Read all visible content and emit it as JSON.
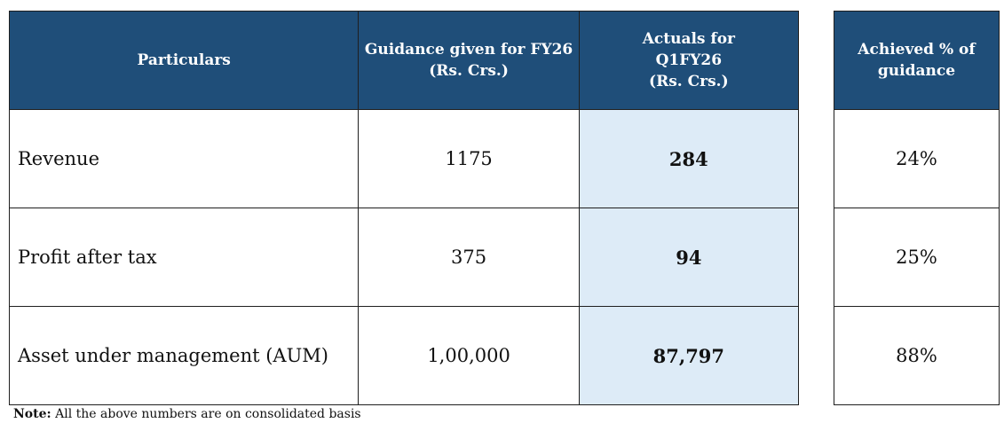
{
  "table": {
    "headers": {
      "particulars": "Particulars",
      "guidance_line1": "Guidance given for FY26",
      "guidance_line2": "(Rs. Crs.)",
      "actuals_line1": "Actuals for",
      "actuals_line2": "Q1FY26",
      "actuals_line3": "(Rs. Crs.)"
    },
    "rows": [
      {
        "particular": "Revenue",
        "guidance": "1175",
        "actuals": "284"
      },
      {
        "particular": "Profit after tax",
        "guidance": "375",
        "actuals": "94"
      },
      {
        "particular": "Asset under management (AUM)",
        "guidance": "1,00,000",
        "actuals": "87,797"
      }
    ]
  },
  "achieved": {
    "header_line1": "Achieved % of",
    "header_line2": "guidance",
    "values": [
      "24%",
      "25%",
      "88%"
    ]
  },
  "note": {
    "label": "Note:",
    "text": "All the above numbers are on consolidated basis"
  },
  "colors": {
    "header_bg": "#1f4e79",
    "header_text": "#ffffff",
    "highlight_bg": "#ddebf7",
    "border": "#1f1f1f"
  }
}
